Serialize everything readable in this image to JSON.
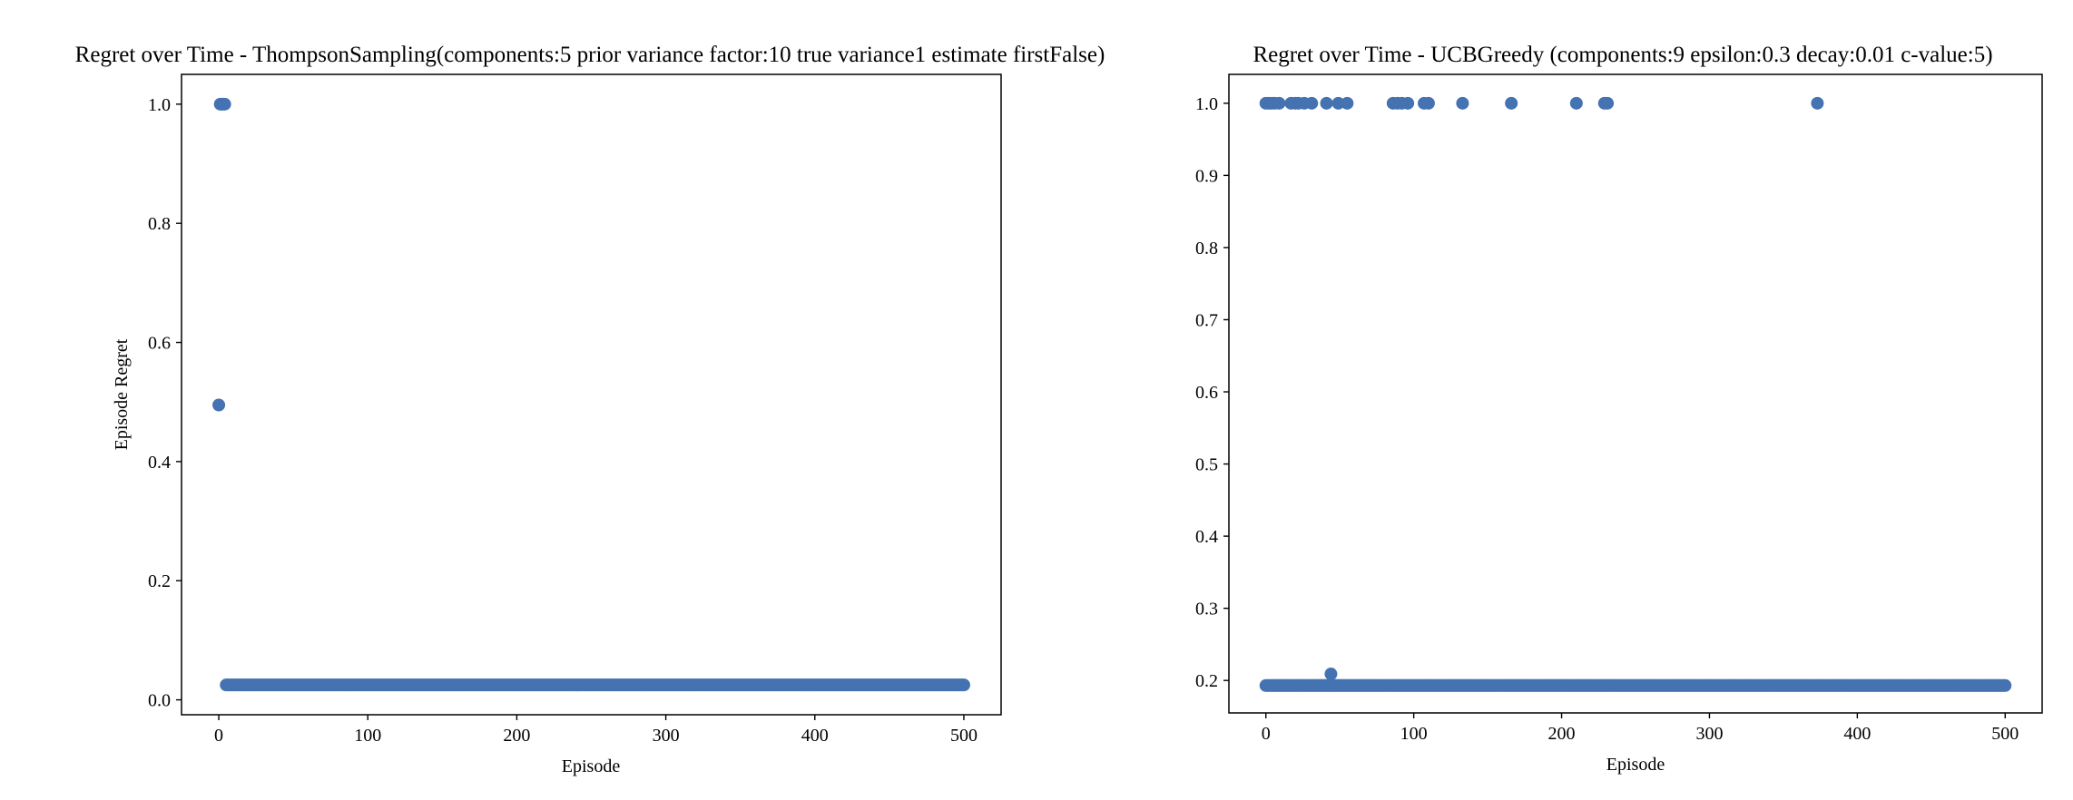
{
  "marker_color": "#4572b0",
  "chart_data": [
    {
      "type": "scatter",
      "title": "Regret over Time - ThompsonSampling(components:5 prior variance factor:10 true variance1 estimate firstFalse)",
      "xlabel": "Episode",
      "ylabel": "Episode Regret",
      "xlim": [
        -25,
        525
      ],
      "ylim": [
        -0.025,
        1.05
      ],
      "xticks": [
        0,
        100,
        200,
        300,
        400,
        500
      ],
      "yticks": [
        0.0,
        0.2,
        0.4,
        0.6,
        0.8,
        1.0
      ],
      "ytick_labels": [
        "0.0",
        "0.2",
        "0.4",
        "0.6",
        "0.8",
        "1.0"
      ],
      "xtick_labels": [
        "0",
        "100",
        "200",
        "300",
        "400",
        "500"
      ],
      "grid": false,
      "series": [
        {
          "name": "Episode Regret",
          "points": [
            [
              0,
              0.495
            ],
            [
              1,
              1.0
            ],
            [
              2,
              1.0
            ],
            [
              3,
              1.0
            ],
            [
              4,
              1.0
            ]
          ],
          "constant_run": {
            "x_start": 5,
            "x_end": 500,
            "step": 1,
            "y": 0.025
          }
        }
      ]
    },
    {
      "type": "scatter",
      "title": "Regret over Time - UCBGreedy (components:9 epsilon:0.3 decay:0.01 c-value:5)",
      "xlabel": "Episode",
      "ylabel": "",
      "xlim": [
        -25,
        525
      ],
      "ylim": [
        0.155,
        1.04
      ],
      "xticks": [
        0,
        100,
        200,
        300,
        400,
        500
      ],
      "yticks": [
        0.2,
        0.3,
        0.4,
        0.5,
        0.6,
        0.7,
        0.8,
        0.9,
        1.0
      ],
      "ytick_labels": [
        "0.2",
        "0.3",
        "0.4",
        "0.5",
        "0.6",
        "0.7",
        "0.8",
        "0.9",
        "1.0"
      ],
      "xtick_labels": [
        "0",
        "100",
        "200",
        "300",
        "400",
        "500"
      ],
      "grid": false,
      "series": [
        {
          "name": "Episode Regret",
          "points": [
            [
              0,
              1.0
            ],
            [
              2,
              1.0
            ],
            [
              4,
              1.0
            ],
            [
              6,
              1.0
            ],
            [
              9,
              1.0
            ],
            [
              17,
              1.0
            ],
            [
              20,
              1.0
            ],
            [
              22,
              1.0
            ],
            [
              26,
              1.0
            ],
            [
              31,
              1.0
            ],
            [
              41,
              1.0
            ],
            [
              49,
              1.0
            ],
            [
              55,
              1.0
            ],
            [
              86,
              1.0
            ],
            [
              89,
              1.0
            ],
            [
              92,
              1.0
            ],
            [
              96,
              1.0
            ],
            [
              107,
              1.0
            ],
            [
              110,
              1.0
            ],
            [
              133,
              1.0
            ],
            [
              166,
              1.0
            ],
            [
              210,
              1.0
            ],
            [
              229,
              1.0
            ],
            [
              231,
              1.0
            ],
            [
              373,
              1.0
            ],
            [
              44,
              0.209
            ]
          ],
          "constant_run": {
            "x_start": 0,
            "x_end": 500,
            "step": 1,
            "y": 0.193
          }
        }
      ]
    }
  ]
}
